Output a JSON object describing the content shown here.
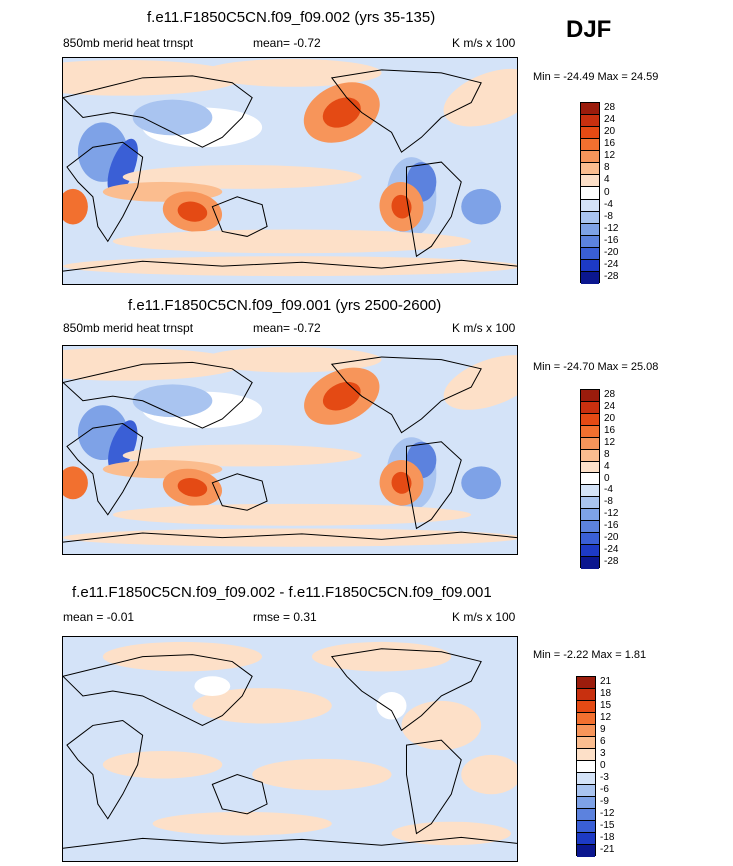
{
  "season_label": "DJF",
  "chart_data": [
    {
      "type": "heatmap",
      "title": "f.e11.F1850C5CN.f09_f09.002 (yrs 35-135)",
      "subtitle_left": "850mb merid heat trnspt",
      "subtitle_mid": "mean=  -0.72",
      "subtitle_right": "K m/s x 100",
      "minmax_text": "Min = -24.49 Max =  24.59",
      "min": -24.49,
      "max": 24.59,
      "levels": [
        "28",
        "24",
        "20",
        "16",
        "12",
        "8",
        "4",
        "0",
        "-4",
        "-8",
        "-12",
        "-16",
        "-20",
        "-24",
        "-28"
      ],
      "colors": [
        "#9b1c0c",
        "#c8300f",
        "#e44a14",
        "#f2702f",
        "#f7955a",
        "#fbbd8f",
        "#fde0c8",
        "#ffffff",
        "#d4e3f8",
        "#a9c4f0",
        "#7ea2e7",
        "#5c82de",
        "#3a5fd6",
        "#1d3ac5",
        "#0b178f"
      ],
      "colorbar_keys": [
        "28",
        "24",
        "20",
        "16",
        "12",
        "8",
        "4",
        "0",
        "-4",
        "-8",
        "-12",
        "-16",
        "-20",
        "-24",
        "-28"
      ]
    },
    {
      "type": "heatmap",
      "title": "f.e11.F1850C5CN.f09_f09.001 (yrs 2500-2600)",
      "subtitle_left": "850mb merid heat trnspt",
      "subtitle_mid": "mean=  -0.72",
      "subtitle_right": "K m/s x 100",
      "minmax_text": "Min = -24.70 Max =  25.08",
      "min": -24.7,
      "max": 25.08,
      "levels": [
        "28",
        "24",
        "20",
        "16",
        "12",
        "8",
        "4",
        "0",
        "-4",
        "-8",
        "-12",
        "-16",
        "-20",
        "-24",
        "-28"
      ],
      "colors": [
        "#9b1c0c",
        "#c8300f",
        "#e44a14",
        "#f2702f",
        "#f7955a",
        "#fbbd8f",
        "#fde0c8",
        "#ffffff",
        "#d4e3f8",
        "#a9c4f0",
        "#7ea2e7",
        "#5c82de",
        "#3a5fd6",
        "#1d3ac5",
        "#0b178f"
      ]
    },
    {
      "type": "heatmap",
      "title": "f.e11.F1850C5CN.f09_f09.002 - f.e11.F1850C5CN.f09_f09.001",
      "subtitle_left": "mean =  -0.01",
      "subtitle_mid": "rmse =   0.31",
      "subtitle_right": "K m/s x 100",
      "minmax_text": "Min =  -2.22 Max =   1.81",
      "min": -2.22,
      "max": 1.81,
      "levels": [
        "21",
        "18",
        "15",
        "12",
        "9",
        "6",
        "3",
        "0",
        "-3",
        "-6",
        "-9",
        "-12",
        "-15",
        "-18",
        "-21"
      ],
      "colors": [
        "#9b1c0c",
        "#c8300f",
        "#e44a14",
        "#f2702f",
        "#f7955a",
        "#fbbd8f",
        "#fde0c8",
        "#ffffff",
        "#d4e3f8",
        "#a9c4f0",
        "#7ea2e7",
        "#5c82de",
        "#3a5fd6",
        "#1d3ac5",
        "#0b178f"
      ]
    }
  ]
}
